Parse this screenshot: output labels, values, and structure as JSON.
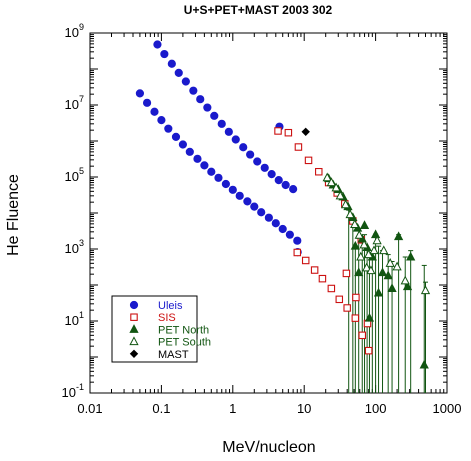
{
  "chart_data": {
    "type": "scatter",
    "title": "U+S+PET+MAST 2003 302",
    "xlabel": "MeV/nucleon",
    "ylabel": "He Fluence",
    "x_scale": "log",
    "y_scale": "log",
    "xlim": [
      0.01,
      1000
    ],
    "ylim": [
      0.1,
      1000000000
    ],
    "x_ticks": [
      {
        "value": 0.01,
        "label": "0.01"
      },
      {
        "value": 0.1,
        "label": "0.1"
      },
      {
        "value": 1,
        "label": "1"
      },
      {
        "value": 10,
        "label": "10"
      },
      {
        "value": 100,
        "label": "100"
      },
      {
        "value": 1000,
        "label": "1000"
      }
    ],
    "y_ticks": [
      {
        "value": 0.1,
        "base": "10",
        "exp": "-1"
      },
      {
        "value": 10,
        "base": "10",
        "exp": "1"
      },
      {
        "value": 1000,
        "base": "10",
        "exp": "3"
      },
      {
        "value": 100000,
        "base": "10",
        "exp": "5"
      },
      {
        "value": 10000000,
        "base": "10",
        "exp": "7"
      },
      {
        "value": 1000000000,
        "base": "10",
        "exp": "9"
      }
    ],
    "grid": false,
    "legend_position": "bottom-left",
    "series": [
      {
        "name": "Uleis",
        "color": "#1a1acc",
        "marker": "circle",
        "points": [
          [
            0.088,
            480000000
          ],
          [
            0.11,
            260000000
          ],
          [
            0.14,
            140000000
          ],
          [
            0.175,
            78000000
          ],
          [
            0.22,
            45000000
          ],
          [
            0.28,
            25000000
          ],
          [
            0.35,
            14500000
          ],
          [
            0.44,
            8500000
          ],
          [
            0.55,
            5000000
          ],
          [
            0.7,
            3000000
          ],
          [
            0.88,
            1800000
          ],
          [
            1.1,
            1100000
          ],
          [
            1.4,
            670000
          ],
          [
            1.75,
            420000
          ],
          [
            2.2,
            270000
          ],
          [
            2.8,
            180000
          ],
          [
            3.5,
            120000
          ],
          [
            4.4,
            82000
          ],
          [
            5.5,
            60000
          ],
          [
            7.0,
            46000
          ],
          [
            0.05,
            21000000
          ],
          [
            0.063,
            11500000
          ],
          [
            0.08,
            6500000
          ],
          [
            0.1,
            3800000
          ],
          [
            0.125,
            2200000
          ],
          [
            0.16,
            1300000
          ],
          [
            0.2,
            800000
          ],
          [
            0.25,
            500000
          ],
          [
            0.32,
            320000
          ],
          [
            0.4,
            210000
          ],
          [
            0.5,
            140000
          ],
          [
            0.63,
            95000
          ],
          [
            0.8,
            64000
          ],
          [
            1.0,
            44000
          ],
          [
            1.25,
            30000
          ],
          [
            1.6,
            21000
          ],
          [
            2.0,
            15000
          ],
          [
            2.5,
            10500
          ],
          [
            3.2,
            7400
          ],
          [
            4.0,
            5200
          ],
          [
            5.0,
            3600
          ],
          [
            6.3,
            2500
          ],
          [
            8.0,
            1700
          ],
          [
            4.5,
            2500000
          ],
          [
            8.1,
            820
          ]
        ]
      },
      {
        "name": "SIS",
        "color": "#cc1111",
        "marker": "square-open",
        "points": [
          [
            4.3,
            1900000
          ],
          [
            6.0,
            1700000
          ],
          [
            8.3,
            680000
          ],
          [
            11.5,
            290000
          ],
          [
            16.0,
            140000
          ],
          [
            22.0,
            70000
          ],
          [
            29.0,
            36000
          ],
          [
            37.0,
            18000
          ],
          [
            48.0,
            6000
          ],
          [
            63.0,
            1800
          ],
          [
            8.0,
            800
          ],
          [
            10.5,
            480
          ],
          [
            14.0,
            260
          ],
          [
            18.0,
            150
          ],
          [
            24.0,
            80
          ],
          [
            31.0,
            40
          ],
          [
            40.0,
            23
          ],
          [
            52.0,
            12
          ],
          [
            65.0,
            4
          ],
          [
            80.0,
            1.5
          ],
          [
            39.0,
            210
          ],
          [
            53.0,
            45
          ],
          [
            77.0,
            8.5
          ]
        ]
      },
      {
        "name": "PET North",
        "color": "#115511",
        "marker": "triangle",
        "points": [
          [
            22.0,
            90000
          ],
          [
            25.5,
            60000
          ],
          [
            30.0,
            45000
          ],
          [
            35.0,
            28000
          ],
          [
            41.0,
            15000
          ],
          [
            48.0,
            7500
          ],
          [
            56.0,
            3800
          ],
          [
            65.0,
            1900
          ],
          [
            76.0,
            1100
          ],
          [
            90.0,
            600
          ],
          [
            100.0,
            2500
          ],
          [
            125.0,
            220
          ],
          [
            150.0,
            180
          ],
          [
            210.0,
            2200
          ],
          [
            280.0,
            90
          ],
          [
            310.0,
            600
          ],
          [
            480.0,
            0.6
          ],
          [
            52.0,
            1200
          ],
          [
            58.0,
            220
          ],
          [
            70.0,
            4500
          ],
          [
            82.0,
            12
          ],
          [
            110.0,
            60
          ],
          [
            170.0,
            80
          ]
        ]
      },
      {
        "name": "PET South",
        "color": "#115511",
        "marker": "triangle-open",
        "points": [
          [
            21.0,
            95000
          ],
          [
            24.0,
            70000
          ],
          [
            28.0,
            50000
          ],
          [
            32.0,
            30000
          ],
          [
            38.0,
            17000
          ],
          [
            44.0,
            9000
          ],
          [
            51.0,
            4800
          ],
          [
            59.0,
            2400
          ],
          [
            69.0,
            1300
          ],
          [
            80.0,
            700
          ],
          [
            95.0,
            900
          ],
          [
            105.0,
            1700
          ],
          [
            130.0,
            900
          ],
          [
            160.0,
            400
          ],
          [
            200.0,
            320
          ],
          [
            260.0,
            130
          ],
          [
            500.0,
            70
          ],
          [
            62.0,
            600
          ],
          [
            75.0,
            300
          ],
          [
            86.0,
            250
          ]
        ]
      },
      {
        "name": "MAST",
        "color": "#000000",
        "marker": "diamond",
        "points": [
          [
            10.5,
            1800000
          ]
        ]
      }
    ],
    "error_bars": {
      "series": "PET North/South",
      "color": "#115511",
      "bars": [
        [
          42.0,
          12000,
          0.1
        ],
        [
          48.0,
          6000,
          0.1
        ],
        [
          52.0,
          1200,
          0.1
        ],
        [
          58.0,
          2000,
          0.1
        ],
        [
          65.0,
          1500,
          0.1
        ],
        [
          70.0,
          2500,
          0.1
        ],
        [
          76.0,
          1100,
          0.1
        ],
        [
          82.0,
          800,
          0.1
        ],
        [
          90.0,
          600,
          0.1
        ],
        [
          100.0,
          2600,
          0.1
        ],
        [
          110.0,
          1200,
          0.1
        ],
        [
          125.0,
          900,
          0.1
        ],
        [
          150.0,
          700,
          0.1
        ],
        [
          170.0,
          450,
          0.1
        ],
        [
          210.0,
          2500,
          0.1
        ],
        [
          260.0,
          600,
          0.1
        ],
        [
          310.0,
          900,
          0.1
        ],
        [
          480.0,
          350,
          0.1
        ],
        [
          500.0,
          120,
          0.1
        ]
      ]
    }
  }
}
